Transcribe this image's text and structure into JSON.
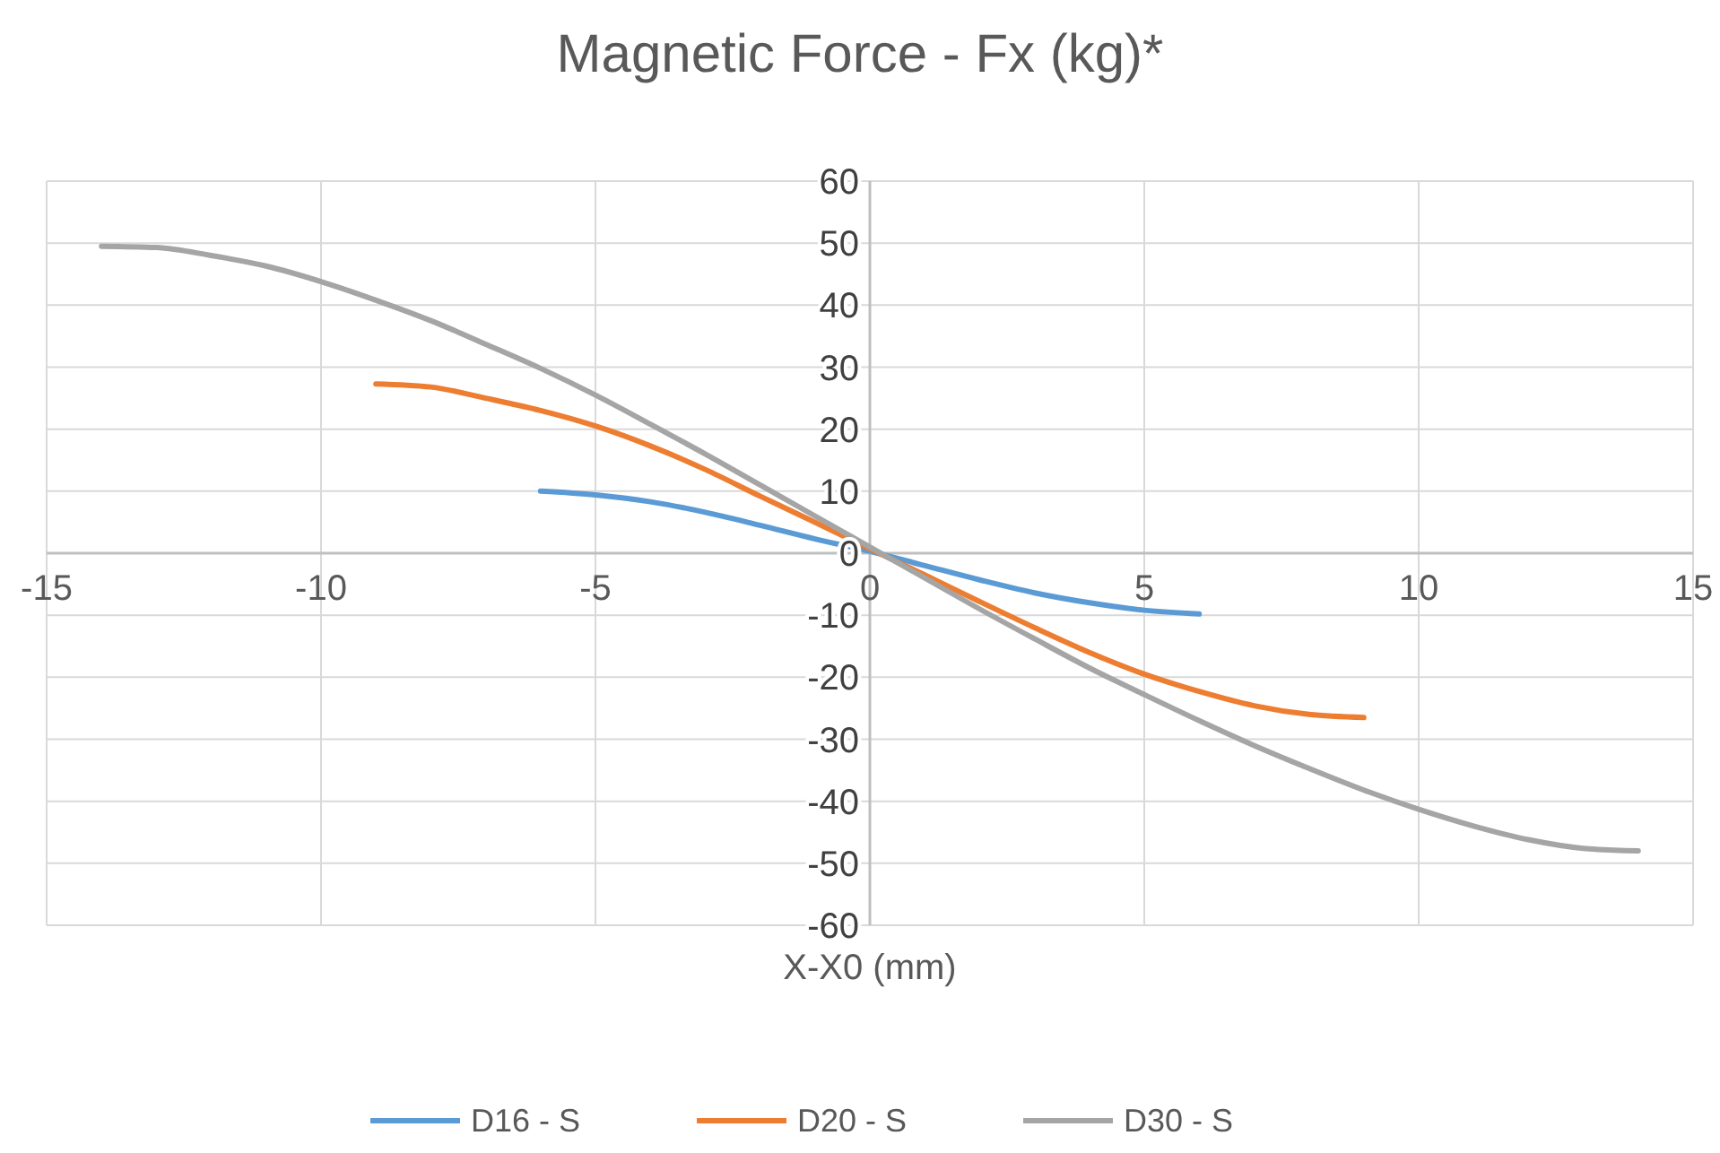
{
  "chart_data": {
    "type": "line",
    "title": "Magnetic Force - Fx (kg)*",
    "xlabel": "X-X0 (mm)",
    "xlim": [
      -15,
      15
    ],
    "xticks": [
      -15,
      -10,
      -5,
      0,
      5,
      10,
      15
    ],
    "ylim": [
      -60,
      60
    ],
    "yticks": [
      -60,
      -50,
      -40,
      -30,
      -20,
      -10,
      0,
      10,
      20,
      30,
      40,
      50,
      60
    ],
    "grid": true,
    "legend": "bottom",
    "marker": "none",
    "line_style": "solid",
    "series": [
      {
        "name": "D16 - S",
        "color": "#5b9bd5",
        "x": [
          -6,
          -5,
          -4,
          -3,
          -2,
          -1,
          0,
          1,
          2,
          3,
          4,
          5,
          6
        ],
        "values": [
          10,
          9.4,
          8.3,
          6.6,
          4.5,
          2.3,
          0.3,
          -2,
          -4.3,
          -6.4,
          -8,
          -9.2,
          -9.8
        ]
      },
      {
        "name": "D20 - S",
        "color": "#ed7d31",
        "x": [
          -9,
          -8,
          -7,
          -6,
          -5,
          -4,
          -3,
          -2,
          -1,
          0,
          1,
          2,
          3,
          4,
          5,
          6,
          7,
          8,
          9
        ],
        "values": [
          27.3,
          26.8,
          25,
          23,
          20.5,
          17.3,
          13.5,
          9.2,
          5,
          0.7,
          -3.5,
          -7.8,
          -12,
          -16,
          -19.5,
          -22.3,
          -24.6,
          -26,
          -26.5
        ]
      },
      {
        "name": "D30 - S",
        "color": "#a5a5a5",
        "x": [
          -14,
          -13,
          -12,
          -11,
          -10,
          -9,
          -8,
          -7,
          -6,
          -5,
          -4,
          -3,
          -2,
          -1,
          0,
          1,
          2,
          3,
          4,
          5,
          6,
          7,
          8,
          9,
          10,
          11,
          12,
          13,
          14
        ],
        "values": [
          49.5,
          49.3,
          48,
          46.3,
          43.8,
          40.8,
          37.5,
          33.7,
          29.8,
          25.5,
          20.8,
          16,
          11,
          6,
          1,
          -4,
          -9,
          -13.8,
          -18.5,
          -22.8,
          -27,
          -31,
          -34.7,
          -38.2,
          -41.3,
          -44,
          -46.2,
          -47.6,
          -48
        ]
      }
    ]
  }
}
